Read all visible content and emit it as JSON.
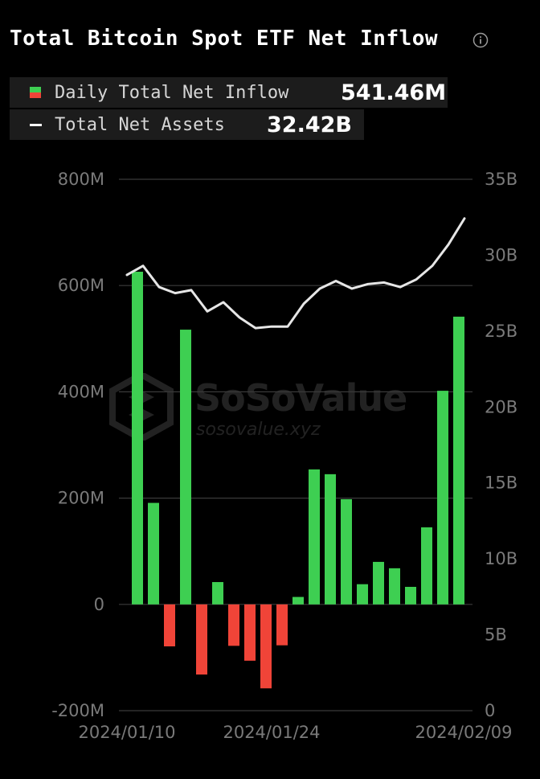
{
  "header": {
    "title": "Total Bitcoin Spot ETF Net Inflow"
  },
  "legend": {
    "inflow_label": "Daily Total Net Inflow",
    "inflow_value": "541.46M",
    "assets_label": "Total Net Assets",
    "assets_value": "32.42B"
  },
  "watermark": {
    "name": "SoSoValue",
    "url": "sosovalue.xyz"
  },
  "colors": {
    "background": "#000000",
    "positive": "#3ecf52",
    "negative": "#f04438",
    "line": "#e6e6e6",
    "grid": "#3a3a3a",
    "axis_text": "#7a7a7a"
  },
  "chart_data": {
    "type": "bar",
    "title": "Total Bitcoin Spot ETF Net Inflow",
    "x_tick_labels": [
      "2024/01/10",
      "2024/01/24",
      "2024/02/09"
    ],
    "y_left": {
      "ticks": [
        800,
        600,
        400,
        200,
        0,
        -200
      ],
      "tick_labels": [
        "800M",
        "600M",
        "400M",
        "200M",
        "0",
        "-200M"
      ],
      "range": [
        -200,
        800
      ],
      "unit": "M"
    },
    "y_right": {
      "ticks": [
        35,
        30,
        25,
        20,
        15,
        10,
        5,
        0
      ],
      "tick_labels": [
        "35B",
        "30B",
        "25B",
        "20B",
        "15B",
        "10B",
        "5B",
        "0"
      ],
      "range": [
        0,
        35
      ],
      "unit": "B"
    },
    "grid": true,
    "series": [
      {
        "name": "Daily Total Net Inflow",
        "type": "bar",
        "axis": "left",
        "values": [
          626,
          191,
          -79,
          517,
          -132,
          42,
          -78,
          -106,
          -158,
          -77,
          14,
          254,
          245,
          198,
          38,
          80,
          68,
          33,
          145,
          402,
          541.46
        ]
      },
      {
        "name": "Total Net Assets",
        "type": "line",
        "axis": "right",
        "values": [
          28.7,
          29.3,
          27.9,
          27.5,
          27.7,
          26.3,
          26.9,
          25.9,
          25.2,
          25.3,
          25.3,
          26.8,
          27.8,
          28.3,
          27.8,
          28.1,
          28.2,
          27.9,
          28.4,
          29.3,
          30.7,
          32.42
        ]
      }
    ]
  }
}
